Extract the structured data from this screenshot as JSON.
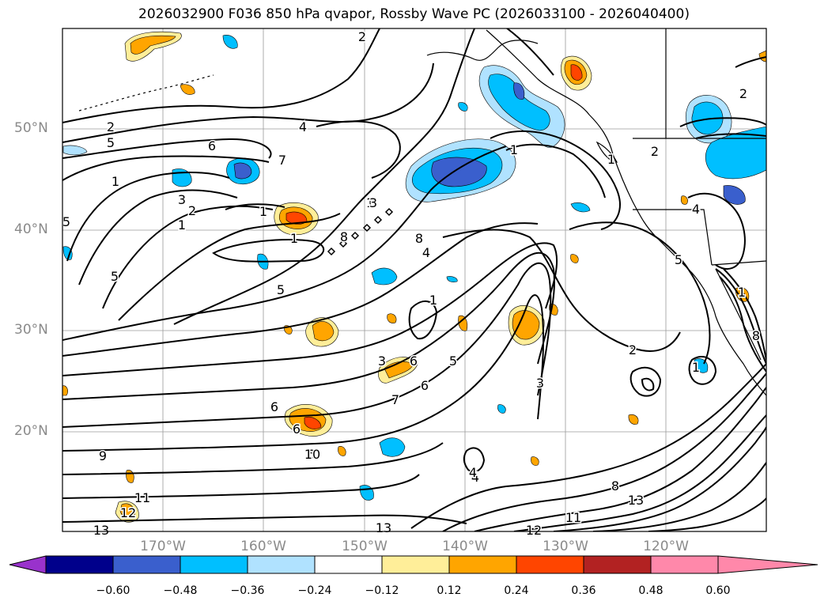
{
  "title": "2026032900 F036 850 hPa qvapor, Rossby Wave PC (2026033100 - 2026040400)",
  "lat_labels": [
    "50°N",
    "40°N",
    "30°N",
    "20°N"
  ],
  "lon_labels": [
    "170°W",
    "160°W",
    "150°W",
    "140°W",
    "130°W",
    "120°W"
  ],
  "colorbar": {
    "ticks": [
      "−0.60",
      "−0.48",
      "−0.36",
      "−0.24",
      "−0.12",
      "0.12",
      "0.24",
      "0.36",
      "0.48",
      "0.60"
    ],
    "colors": [
      "#9932cc",
      "#00008b",
      "#3a5fcd",
      "#00bfff",
      "#b0e2ff",
      "#ffffff",
      "#ffee99",
      "#ffa500",
      "#ff4500",
      "#b22222",
      "#ff88aa"
    ]
  },
  "contour_labels": [
    "2",
    "2",
    "4",
    "5",
    "6",
    "7",
    "1",
    "3",
    "2",
    "1",
    "1",
    "1",
    "5",
    "5",
    "1",
    "8",
    "4",
    "5",
    "1",
    "5",
    "3",
    "6",
    "6",
    "6",
    "6",
    "10",
    "9",
    "11",
    "12",
    "13",
    "13",
    "12",
    "3",
    "4",
    "8",
    "13",
    "11",
    "2",
    "1",
    "2",
    "1",
    "5",
    "8",
    "1",
    "2",
    "4",
    "1",
    "3",
    "8",
    "7",
    "6",
    "4"
  ]
}
